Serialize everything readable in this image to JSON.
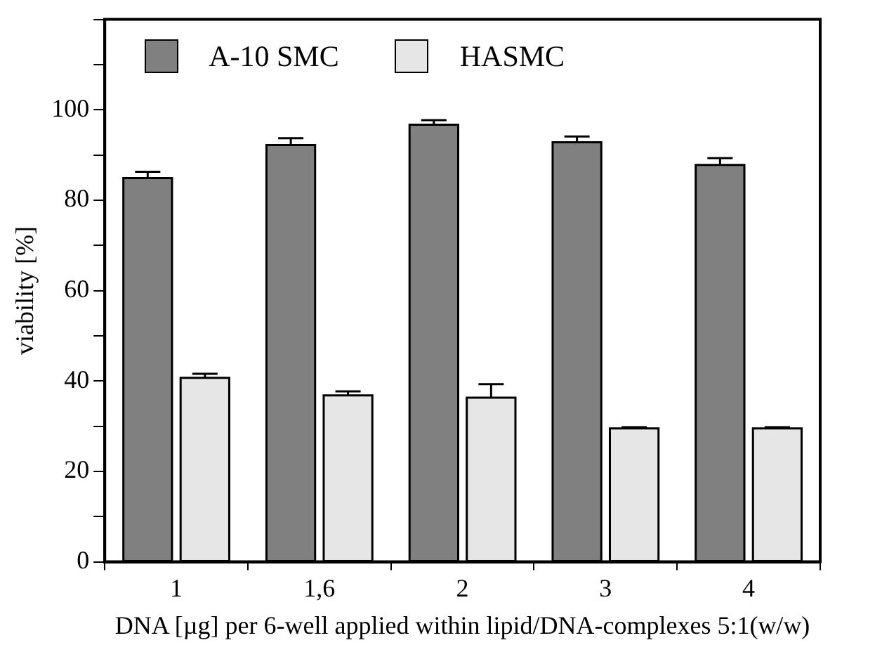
{
  "chart_data": {
    "type": "bar",
    "xlabel": "DNA [µg] per 6-well applied within lipid/DNA-complexes 5:1(w/w)",
    "ylabel": "viability [%]",
    "categories": [
      "1",
      "1,6",
      "2",
      "3",
      "4"
    ],
    "series": [
      {
        "name": "A-10 SMC",
        "color": "#808080",
        "values": [
          84.9,
          92.2,
          96.7,
          92.8,
          87.8
        ],
        "errors": [
          1.4,
          1.5,
          1.0,
          1.3,
          1.5
        ]
      },
      {
        "name": "HASMC",
        "color": "#e6e6e6",
        "values": [
          40.7,
          36.8,
          36.3,
          29.5,
          29.5
        ],
        "errors": [
          0.9,
          0.9,
          3.0,
          0.3,
          0.3
        ]
      }
    ],
    "ylim": [
      0,
      120
    ],
    "yticks": [
      0,
      {
        "value": 10,
        "label": null
      },
      20,
      {
        "value": 30,
        "label": null
      },
      40,
      {
        "value": 50,
        "label": null
      },
      60,
      {
        "value": 70,
        "label": null
      },
      80,
      {
        "value": 90,
        "label": null
      },
      100,
      {
        "value": 110,
        "label": null
      },
      {
        "value": 120,
        "label": null
      }
    ],
    "legend": "top left",
    "grid": false
  }
}
